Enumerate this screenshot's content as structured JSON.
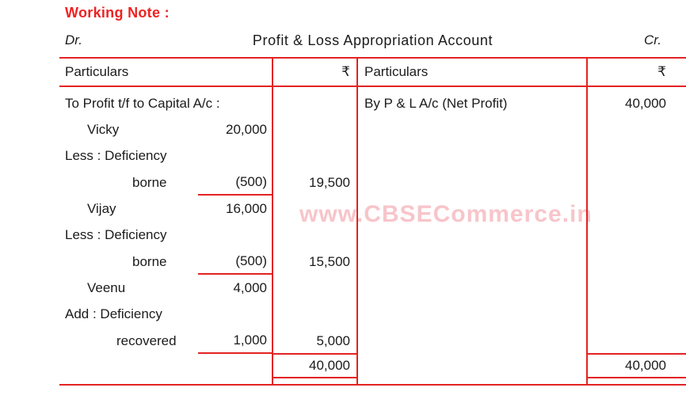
{
  "header": {
    "working_note": "Working Note :",
    "dr": "Dr.",
    "title": "Profit & Loss Appropriation Account",
    "cr": "Cr."
  },
  "watermark": "www.CBSECommerce.in",
  "colors": {
    "line_red": "#e32222",
    "heading_red": "#ee2222",
    "text_black": "#1b1b1b",
    "watermark_pink": "#f7c5ca"
  },
  "account_table": {
    "debit": {
      "particulars_header": "Particulars",
      "amount_header": "₹",
      "rows": [
        {
          "label": "To Profit t/f to Capital A/c :"
        },
        {
          "label": "Vicky",
          "inner": "20,000"
        },
        {
          "label": "Less : Deficiency"
        },
        {
          "label": "borne",
          "inner": "(500)",
          "amount": "19,500"
        },
        {
          "label": "Vijay",
          "inner": "16,000"
        },
        {
          "label": "Less : Deficiency"
        },
        {
          "label": "borne",
          "inner": "(500)",
          "amount": "15,500"
        },
        {
          "label": "Veenu",
          "inner": "4,000"
        },
        {
          "label": "Add : Deficiency"
        },
        {
          "label": "recovered",
          "inner": "1,000",
          "amount": "5,000"
        }
      ],
      "total": "40,000"
    },
    "credit": {
      "particulars_header": "Particulars",
      "amount_header": "₹",
      "rows": [
        {
          "label": "By P & L A/c (Net Profit)",
          "amount": "40,000"
        }
      ],
      "total": "40,000"
    }
  }
}
